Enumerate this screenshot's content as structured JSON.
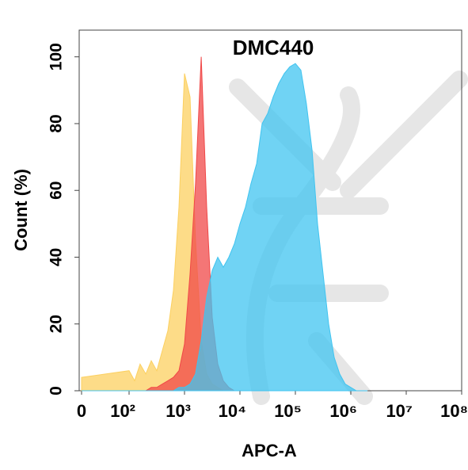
{
  "chart_data": {
    "type": "area",
    "title": "DMC440",
    "xlabel": "APC-A",
    "ylabel": "Count  (%)",
    "xscale": "log",
    "x": [
      0,
      100,
      126,
      158,
      200,
      251,
      316,
      398,
      501,
      631,
      794,
      1000,
      1260,
      1580,
      2000,
      2510,
      3160,
      3980,
      5010,
      6310,
      7940,
      10000,
      12600,
      15800,
      20000,
      25100,
      31600,
      39800,
      50100,
      63100,
      79400,
      100000,
      126000,
      158000,
      200000,
      251000,
      316000,
      398000,
      501000,
      631000,
      794000,
      1000000,
      1260000,
      1580000,
      2000000
    ],
    "series": [
      {
        "color": "#fcd060",
        "values": [
          4,
          6,
          3,
          8,
          5,
          9,
          6,
          12,
          18,
          30,
          55,
          95,
          88,
          45,
          15,
          5,
          2,
          1,
          0,
          0,
          0,
          0,
          0,
          0,
          0,
          0,
          0,
          0,
          0,
          0,
          0,
          0,
          0,
          0,
          0,
          0,
          0,
          0,
          0,
          0,
          0,
          0,
          0,
          0,
          0
        ]
      },
      {
        "color": "#f04848",
        "values": [
          0,
          0,
          0,
          0,
          0,
          1,
          1,
          2,
          3,
          4,
          6,
          14,
          35,
          62,
          100,
          55,
          22,
          8,
          3,
          1,
          0,
          0,
          0,
          0,
          0,
          0,
          0,
          0,
          0,
          0,
          0,
          0,
          0,
          0,
          0,
          0,
          0,
          0,
          0,
          0,
          0,
          0,
          0,
          0,
          0
        ]
      },
      {
        "color": "#40c4f0",
        "values": [
          0,
          0,
          0,
          0,
          0,
          0,
          0,
          0,
          0,
          0,
          1,
          1,
          2,
          5,
          15,
          28,
          36,
          40,
          37,
          40,
          44,
          50,
          55,
          62,
          68,
          80,
          83,
          88,
          92,
          95,
          97,
          98,
          96,
          86,
          72,
          50,
          35,
          20,
          10,
          5,
          2,
          1,
          0,
          0,
          0
        ]
      }
    ],
    "xlim": [
      0,
      100000000
    ],
    "xticks": [
      0,
      {
        "value": 100,
        "label": "10²"
      },
      {
        "value": 1000,
        "label": "10³"
      },
      {
        "value": 10000,
        "label": "10⁴"
      },
      {
        "value": 100000,
        "label": "10⁵"
      },
      {
        "value": 1000000,
        "label": "10⁶"
      },
      {
        "value": 10000000,
        "label": "10⁷"
      },
      {
        "value": 100000000,
        "label": "10⁸"
      }
    ],
    "ylim": [
      0,
      108
    ],
    "yticks": [
      0,
      20,
      40,
      60,
      80,
      100
    ]
  }
}
